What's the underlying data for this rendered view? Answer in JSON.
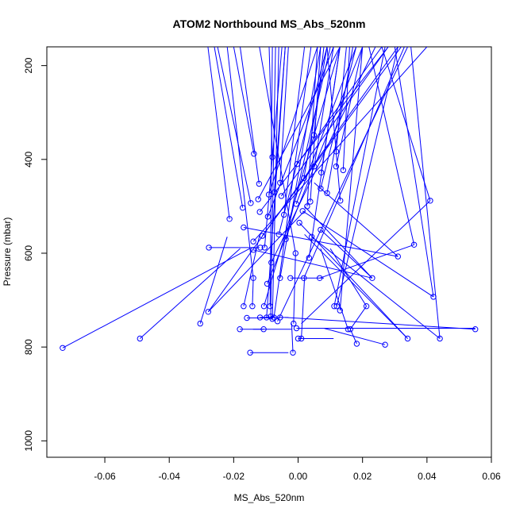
{
  "chart_data": {
    "type": "scatter",
    "title": "ATOM2 Northbound MS_Abs_520nm",
    "xlabel": "MS_Abs_520nm",
    "ylabel": "Pressure (mbar)",
    "xlim": [
      -0.078,
      0.06
    ],
    "ylim": [
      1035,
      160
    ],
    "y_reversed": true,
    "grid": false,
    "legend": "none",
    "style": "line segments connecting points with open circle markers",
    "colors": {
      "series": "#0000ff",
      "axis": "#000000",
      "background": "#ffffff"
    },
    "xticks": [
      {
        "value": -0.06,
        "label": "-0.06"
      },
      {
        "value": -0.04,
        "label": "-0.04"
      },
      {
        "value": -0.02,
        "label": "-0.02"
      },
      {
        "value": 0.0,
        "label": "0.00"
      },
      {
        "value": 0.02,
        "label": "0.02"
      },
      {
        "value": 0.04,
        "label": "0.04"
      },
      {
        "value": 0.06,
        "label": "0.06"
      }
    ],
    "yticks": [
      {
        "value": 200,
        "label": "200"
      },
      {
        "value": 400,
        "label": "400"
      },
      {
        "value": 600,
        "label": "600"
      },
      {
        "value": 800,
        "label": "800"
      },
      {
        "value": 1000,
        "label": "1000"
      }
    ],
    "points": [
      {
        "x": -0.0731,
        "y": 802
      },
      {
        "x": -0.0491,
        "y": 782
      },
      {
        "x": -0.0304,
        "y": 750
      },
      {
        "x": -0.0279,
        "y": 725
      },
      {
        "x": -0.0277,
        "y": 588
      },
      {
        "x": -0.0213,
        "y": 527
      },
      {
        "x": -0.0181,
        "y": 762
      },
      {
        "x": -0.0172,
        "y": 503
      },
      {
        "x": -0.0169,
        "y": 713
      },
      {
        "x": -0.0169,
        "y": 545
      },
      {
        "x": -0.0159,
        "y": 738
      },
      {
        "x": -0.0149,
        "y": 812
      },
      {
        "x": -0.0147,
        "y": 493
      },
      {
        "x": -0.0142,
        "y": 713
      },
      {
        "x": -0.0139,
        "y": 653
      },
      {
        "x": -0.0139,
        "y": 593
      },
      {
        "x": -0.0139,
        "y": 575
      },
      {
        "x": -0.0137,
        "y": 388
      },
      {
        "x": -0.0124,
        "y": 485
      },
      {
        "x": -0.0121,
        "y": 452
      },
      {
        "x": -0.0119,
        "y": 512
      },
      {
        "x": -0.0118,
        "y": 737
      },
      {
        "x": -0.0117,
        "y": 588
      },
      {
        "x": -0.0111,
        "y": 563
      },
      {
        "x": -0.0107,
        "y": 762
      },
      {
        "x": -0.0106,
        "y": 713
      },
      {
        "x": -0.0104,
        "y": 588
      },
      {
        "x": -0.0098,
        "y": 737
      },
      {
        "x": -0.0096,
        "y": 665
      },
      {
        "x": -0.0094,
        "y": 522
      },
      {
        "x": -0.0091,
        "y": 475
      },
      {
        "x": -0.0087,
        "y": 713
      },
      {
        "x": -0.0085,
        "y": 735
      },
      {
        "x": -0.0083,
        "y": 620
      },
      {
        "x": -0.008,
        "y": 740
      },
      {
        "x": -0.008,
        "y": 395
      },
      {
        "x": -0.0075,
        "y": 737
      },
      {
        "x": -0.0074,
        "y": 470
      },
      {
        "x": -0.0064,
        "y": 745
      },
      {
        "x": -0.006,
        "y": 560
      },
      {
        "x": -0.0056,
        "y": 737
      },
      {
        "x": -0.0056,
        "y": 653
      },
      {
        "x": -0.0056,
        "y": 450
      },
      {
        "x": -0.0052,
        "y": 478
      },
      {
        "x": -0.0044,
        "y": 518
      },
      {
        "x": -0.0038,
        "y": 570
      },
      {
        "x": -0.0024,
        "y": 653
      },
      {
        "x": -0.0016,
        "y": 812
      },
      {
        "x": -0.0014,
        "y": 750
      },
      {
        "x": -0.0008,
        "y": 600
      },
      {
        "x": -0.0006,
        "y": 495
      },
      {
        "x": -0.0005,
        "y": 760
      },
      {
        "x": -0.0003,
        "y": 410
      },
      {
        "x": 0.0,
        "y": 782
      },
      {
        "x": 0.0004,
        "y": 535
      },
      {
        "x": 0.001,
        "y": 782
      },
      {
        "x": 0.0014,
        "y": 510
      },
      {
        "x": 0.0018,
        "y": 653
      },
      {
        "x": 0.0018,
        "y": 440
      },
      {
        "x": 0.0028,
        "y": 500
      },
      {
        "x": 0.0034,
        "y": 610
      },
      {
        "x": 0.0038,
        "y": 490
      },
      {
        "x": 0.0042,
        "y": 565
      },
      {
        "x": 0.0049,
        "y": 348
      },
      {
        "x": 0.005,
        "y": 415
      },
      {
        "x": 0.0067,
        "y": 653
      },
      {
        "x": 0.007,
        "y": 550
      },
      {
        "x": 0.007,
        "y": 462
      },
      {
        "x": 0.0072,
        "y": 428
      },
      {
        "x": 0.009,
        "y": 472
      },
      {
        "x": 0.0112,
        "y": 713
      },
      {
        "x": 0.0118,
        "y": 415
      },
      {
        "x": 0.0118,
        "y": 383
      },
      {
        "x": 0.012,
        "y": 713
      },
      {
        "x": 0.013,
        "y": 722
      },
      {
        "x": 0.0131,
        "y": 488
      },
      {
        "x": 0.014,
        "y": 423
      },
      {
        "x": 0.0155,
        "y": 762
      },
      {
        "x": 0.0162,
        "y": 762
      },
      {
        "x": 0.0182,
        "y": 793
      },
      {
        "x": 0.0212,
        "y": 713
      },
      {
        "x": 0.023,
        "y": 653
      },
      {
        "x": 0.027,
        "y": 795
      },
      {
        "x": 0.031,
        "y": 607
      },
      {
        "x": 0.034,
        "y": 782
      },
      {
        "x": 0.036,
        "y": 582
      },
      {
        "x": 0.041,
        "y": 488
      },
      {
        "x": 0.042,
        "y": 693
      },
      {
        "x": 0.044,
        "y": 782
      },
      {
        "x": 0.055,
        "y": 762
      }
    ],
    "segments": [
      {
        "from": [
          -0.0731,
          802
        ],
        "to": [
          -0.015,
          590
        ]
      },
      {
        "from": [
          -0.0491,
          782
        ],
        "to": [
          -0.018,
          590
        ]
      },
      {
        "from": [
          -0.0304,
          750
        ],
        "to": [
          -0.022,
          565
        ]
      },
      {
        "from": [
          -0.0279,
          725
        ],
        "to": [
          0.002,
          510
        ]
      },
      {
        "from": [
          -0.0279,
          725
        ],
        "to": [
          0.031,
          160
        ]
      },
      {
        "from": [
          -0.0277,
          588
        ],
        "to": [
          -0.012,
          588
        ]
      },
      {
        "from": [
          -0.0213,
          527
        ],
        "to": [
          -0.028,
          160
        ]
      },
      {
        "from": [
          -0.0181,
          762
        ],
        "to": [
          -0.002,
          762
        ]
      },
      {
        "from": [
          -0.0172,
          503
        ],
        "to": [
          -0.026,
          160
        ]
      },
      {
        "from": [
          -0.0169,
          713
        ],
        "to": [
          -0.012,
          563
        ]
      },
      {
        "from": [
          -0.0169,
          545
        ],
        "to": [
          0.031,
          607
        ]
      },
      {
        "from": [
          -0.0159,
          738
        ],
        "to": [
          -0.008,
          738
        ]
      },
      {
        "from": [
          -0.0149,
          812
        ],
        "to": [
          -0.003,
          812
        ]
      },
      {
        "from": [
          -0.0147,
          493
        ],
        "to": [
          -0.025,
          160
        ]
      },
      {
        "from": [
          -0.0142,
          713
        ],
        "to": [
          -0.0139,
          653
        ]
      },
      {
        "from": [
          -0.0139,
          653
        ],
        "to": [
          -0.022,
          160
        ]
      },
      {
        "from": [
          -0.0139,
          593
        ],
        "to": [
          0.023,
          653
        ]
      },
      {
        "from": [
          -0.0139,
          575
        ],
        "to": [
          0.04,
          160
        ]
      },
      {
        "from": [
          -0.0137,
          388
        ],
        "to": [
          -0.02,
          160
        ]
      },
      {
        "from": [
          -0.0124,
          485
        ],
        "to": [
          0.013,
          160
        ]
      },
      {
        "from": [
          -0.0121,
          452
        ],
        "to": [
          -0.018,
          160
        ]
      },
      {
        "from": [
          -0.0119,
          512
        ],
        "to": [
          0.028,
          160
        ]
      },
      {
        "from": [
          -0.0118,
          737
        ],
        "to": [
          -0.003,
          737
        ]
      },
      {
        "from": [
          -0.0111,
          563
        ],
        "to": [
          0.032,
          160
        ]
      },
      {
        "from": [
          -0.0107,
          762
        ],
        "to": [
          -0.014,
          762
        ]
      },
      {
        "from": [
          -0.0106,
          713
        ],
        "to": [
          0.013,
          160
        ]
      },
      {
        "from": [
          -0.0104,
          588
        ],
        "to": [
          -0.005,
          160
        ]
      },
      {
        "from": [
          -0.0098,
          737
        ],
        "to": [
          -0.004,
          160
        ]
      },
      {
        "from": [
          -0.0096,
          665
        ],
        "to": [
          0.02,
          160
        ]
      },
      {
        "from": [
          -0.0094,
          522
        ],
        "to": [
          0.011,
          160
        ]
      },
      {
        "from": [
          -0.0091,
          475
        ],
        "to": [
          0.006,
          160
        ]
      },
      {
        "from": [
          -0.0087,
          713
        ],
        "to": [
          -0.008,
          160
        ]
      },
      {
        "from": [
          -0.0085,
          735
        ],
        "to": [
          -0.007,
          160
        ]
      },
      {
        "from": [
          -0.0083,
          620
        ],
        "to": [
          0.024,
          160
        ]
      },
      {
        "from": [
          -0.008,
          740
        ],
        "to": [
          -0.006,
          160
        ]
      },
      {
        "from": [
          -0.008,
          395
        ],
        "to": [
          -0.009,
          160
        ]
      },
      {
        "from": [
          -0.0075,
          737
        ],
        "to": [
          0.004,
          160
        ]
      },
      {
        "from": [
          -0.0074,
          470
        ],
        "to": [
          -0.004,
          160
        ]
      },
      {
        "from": [
          -0.0064,
          745
        ],
        "to": [
          0.034,
          160
        ]
      },
      {
        "from": [
          -0.006,
          560
        ],
        "to": [
          0.009,
          160
        ]
      },
      {
        "from": [
          -0.0056,
          653
        ],
        "to": [
          0.007,
          160
        ]
      },
      {
        "from": [
          -0.0056,
          450
        ],
        "to": [
          -0.003,
          160
        ]
      },
      {
        "from": [
          -0.0052,
          478
        ],
        "to": [
          0.028,
          160
        ]
      },
      {
        "from": [
          -0.0044,
          518
        ],
        "to": [
          0.002,
          160
        ]
      },
      {
        "from": [
          -0.0038,
          570
        ],
        "to": [
          0.01,
          160
        ]
      },
      {
        "from": [
          -0.0024,
          653
        ],
        "to": [
          0.008,
          653
        ]
      },
      {
        "from": [
          -0.0016,
          812
        ],
        "to": [
          -0.002,
          750
        ]
      },
      {
        "from": [
          -0.0014,
          750
        ],
        "to": [
          -0.0008,
          600
        ]
      },
      {
        "from": [
          -0.0008,
          600
        ],
        "to": [
          -0.012,
          160
        ]
      },
      {
        "from": [
          -0.0006,
          495
        ],
        "to": [
          0.018,
          160
        ]
      },
      {
        "from": [
          -0.0005,
          760
        ],
        "to": [
          0.055,
          760
        ]
      },
      {
        "from": [
          -0.0003,
          410
        ],
        "to": [
          0.026,
          160
        ]
      },
      {
        "from": [
          0.0,
          782
        ],
        "to": [
          0.011,
          782
        ]
      },
      {
        "from": [
          0.0004,
          535
        ],
        "to": [
          0.034,
          782
        ]
      },
      {
        "from": [
          0.001,
          782
        ],
        "to": [
          0.002,
          653
        ]
      },
      {
        "from": [
          0.0014,
          510
        ],
        "to": [
          0.042,
          693
        ]
      },
      {
        "from": [
          0.0018,
          653
        ],
        "to": [
          0.033,
          160
        ]
      },
      {
        "from": [
          0.0018,
          440
        ],
        "to": [
          0.009,
          160
        ]
      },
      {
        "from": [
          0.0028,
          500
        ],
        "to": [
          0.006,
          160
        ]
      },
      {
        "from": [
          0.0034,
          610
        ],
        "to": [
          0.013,
          160
        ]
      },
      {
        "from": [
          0.0038,
          490
        ],
        "to": [
          0.007,
          160
        ]
      },
      {
        "from": [
          0.0042,
          565
        ],
        "to": [
          0.044,
          782
        ]
      },
      {
        "from": [
          0.0049,
          348
        ],
        "to": [
          0.008,
          160
        ]
      },
      {
        "from": [
          0.005,
          415
        ],
        "to": [
          0.011,
          160
        ]
      },
      {
        "from": [
          0.0067,
          653
        ],
        "to": [
          0.036,
          582
        ]
      },
      {
        "from": [
          0.007,
          550
        ],
        "to": [
          0.023,
          653
        ]
      },
      {
        "from": [
          0.007,
          462
        ],
        "to": [
          0.018,
          160
        ]
      },
      {
        "from": [
          0.0072,
          428
        ],
        "to": [
          0.013,
          160
        ]
      },
      {
        "from": [
          0.009,
          472
        ],
        "to": [
          0.017,
          160
        ]
      },
      {
        "from": [
          0.0112,
          713
        ],
        "to": [
          0.027,
          160
        ]
      },
      {
        "from": [
          0.0118,
          415
        ],
        "to": [
          0.02,
          160
        ]
      },
      {
        "from": [
          0.0118,
          383
        ],
        "to": [
          0.015,
          160
        ]
      },
      {
        "from": [
          0.012,
          713
        ],
        "to": [
          0.031,
          160
        ]
      },
      {
        "from": [
          0.013,
          722
        ],
        "to": [
          0.02,
          160
        ]
      },
      {
        "from": [
          0.0131,
          488
        ],
        "to": [
          0.009,
          160
        ]
      },
      {
        "from": [
          0.014,
          423
        ],
        "to": [
          0.016,
          160
        ]
      },
      {
        "from": [
          0.0155,
          762
        ],
        "to": [
          0.007,
          590
        ]
      },
      {
        "from": [
          0.0162,
          762
        ],
        "to": [
          0.0212,
          713
        ]
      },
      {
        "from": [
          0.0182,
          793
        ],
        "to": [
          0.0162,
          762
        ]
      },
      {
        "from": [
          0.0212,
          713
        ],
        "to": [
          0.01,
          590
        ]
      },
      {
        "from": [
          0.023,
          653
        ],
        "to": [
          0.002,
          500
        ]
      },
      {
        "from": [
          0.027,
          795
        ],
        "to": [
          0.008,
          760
        ]
      },
      {
        "from": [
          0.031,
          607
        ],
        "to": [
          0.005,
          450
        ]
      },
      {
        "from": [
          0.034,
          782
        ],
        "to": [
          0.002,
          560
        ]
      },
      {
        "from": [
          0.036,
          582
        ],
        "to": [
          0.022,
          160
        ]
      },
      {
        "from": [
          0.041,
          488
        ],
        "to": [
          0.026,
          160
        ]
      },
      {
        "from": [
          0.041,
          488
        ],
        "to": [
          0.001,
          750
        ]
      },
      {
        "from": [
          0.042,
          693
        ],
        "to": [
          0.03,
          160
        ]
      },
      {
        "from": [
          0.044,
          782
        ],
        "to": [
          0.035,
          160
        ]
      },
      {
        "from": [
          0.055,
          762
        ],
        "to": [
          -0.004,
          737
        ]
      }
    ]
  }
}
